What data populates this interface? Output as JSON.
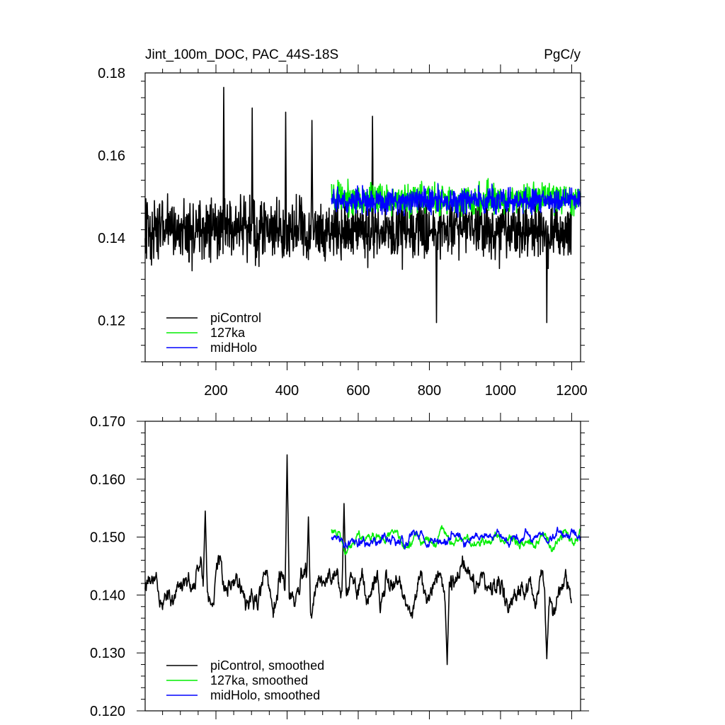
{
  "chart_data": [
    {
      "type": "line",
      "title_left": "Jint_100m_DOC, PAC_44S-18S",
      "title_right": "PgC/y",
      "xlim": [
        1,
        1225
      ],
      "ylim": [
        0.11,
        0.18
      ],
      "yticks": [
        0.12,
        0.14,
        0.16,
        0.18
      ],
      "ytick_labels": [
        "0.12",
        "0.14",
        "0.16",
        "0.18"
      ],
      "xticks": [
        200,
        400,
        600,
        800,
        1000,
        1200
      ],
      "xtick_labels": [
        "200",
        "400",
        "600",
        "800",
        "1000",
        "1200"
      ],
      "grid": false,
      "legend_position": "bottom-left",
      "series": [
        {
          "name": "piControl",
          "color": "#000000",
          "x_start": 1,
          "x_end": 1200,
          "mean": 0.142,
          "amplitude": 0.011,
          "spikes": [
            [
              222,
              0.1765
            ],
            [
              302,
              0.1715
            ],
            [
              396,
              0.1705
            ],
            [
              470,
              0.1685
            ],
            [
              640,
              0.1695
            ],
            [
              820,
              0.1195
            ],
            [
              1130,
              0.1195
            ]
          ]
        },
        {
          "name": "127ka",
          "color": "#00ee00",
          "x_start": 525,
          "x_end": 1225,
          "mean": 0.1495,
          "amplitude": 0.0055,
          "spikes": []
        },
        {
          "name": "midHolo",
          "color": "#0000ff",
          "x_start": 525,
          "x_end": 1225,
          "mean": 0.149,
          "amplitude": 0.0045,
          "spikes": []
        }
      ]
    },
    {
      "type": "line",
      "xlim": [
        1,
        1225
      ],
      "ylim": [
        0.12,
        0.17
      ],
      "yticks": [
        0.12,
        0.13,
        0.14,
        0.15,
        0.16,
        0.17
      ],
      "ytick_labels": [
        "0.120",
        "0.130",
        "0.140",
        "0.150",
        "0.160",
        "0.170"
      ],
      "xticks": [
        200,
        400,
        600,
        800,
        1000,
        1200
      ],
      "grid": false,
      "legend_position": "bottom-left",
      "series": [
        {
          "name": "piControl, smoothed",
          "color": "#000000",
          "x_start": 1,
          "x_end": 1200,
          "mean": 0.1415,
          "amplitude": 0.0055,
          "spikes": [
            [
              400,
              0.1642
            ],
            [
              170,
              0.1545
            ],
            [
              460,
              0.1535
            ],
            [
              560,
              0.1558
            ],
            [
              850,
              0.128
            ],
            [
              1130,
              0.129
            ]
          ]
        },
        {
          "name": "127ka, smoothed",
          "color": "#00ee00",
          "x_start": 525,
          "x_end": 1225,
          "mean": 0.1495,
          "amplitude": 0.0025,
          "spikes": []
        },
        {
          "name": "midHolo, smoothed",
          "color": "#0000ff",
          "x_start": 525,
          "x_end": 1225,
          "mean": 0.1495,
          "amplitude": 0.0022,
          "spikes": []
        }
      ]
    }
  ]
}
